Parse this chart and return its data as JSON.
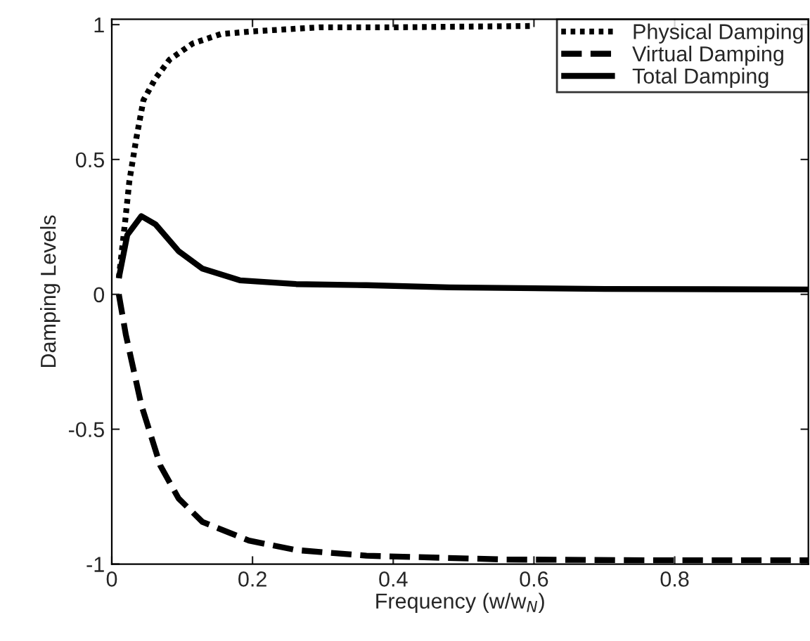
{
  "chart_data": {
    "type": "line",
    "xlabel": "Frequency (w/w$_{N}$)",
    "ylabel": "Damping Levels",
    "xlim": [
      0,
      0.99
    ],
    "ylim": [
      -1,
      1.02
    ],
    "xticks": [
      0,
      0.2,
      0.4,
      0.6,
      0.8
    ],
    "yticks": [
      -1,
      -0.5,
      0,
      0.5,
      1
    ],
    "grid": false,
    "legend": "top right",
    "series": [
      {
        "name": "Physical Damping",
        "color": "#000000",
        "line_style": "dotted",
        "x": [
          0.01,
          0.019,
          0.025,
          0.035,
          0.045,
          0.062,
          0.082,
          0.115,
          0.155,
          0.2,
          0.295,
          0.4,
          0.6
        ],
        "values": [
          0.06,
          0.27,
          0.42,
          0.58,
          0.72,
          0.8,
          0.87,
          0.93,
          0.965,
          0.975,
          0.99,
          0.99,
          0.995
        ]
      },
      {
        "name": "Virtual Damping",
        "color": "#000000",
        "line_style": "dashed",
        "x": [
          0.01,
          0.02,
          0.042,
          0.069,
          0.095,
          0.129,
          0.195,
          0.262,
          0.362,
          0.56,
          0.76,
          0.99
        ],
        "values": [
          0.0,
          -0.15,
          -0.41,
          -0.635,
          -0.757,
          -0.844,
          -0.913,
          -0.948,
          -0.969,
          -0.983,
          -0.986,
          -0.986
        ]
      },
      {
        "name": "Total Damping",
        "color": "#000000",
        "line_style": "solid",
        "x": [
          0.01,
          0.022,
          0.042,
          0.062,
          0.095,
          0.129,
          0.182,
          0.262,
          0.362,
          0.48,
          0.7,
          0.99
        ],
        "values": [
          0.06,
          0.22,
          0.29,
          0.26,
          0.16,
          0.095,
          0.052,
          0.038,
          0.034,
          0.026,
          0.02,
          0.018
        ]
      }
    ]
  }
}
